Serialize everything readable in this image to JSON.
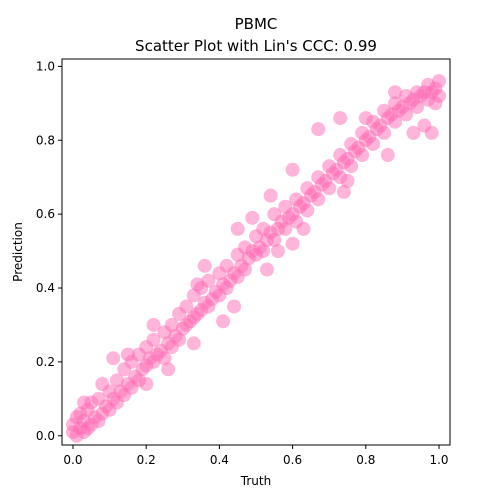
{
  "chart_data": {
    "type": "scatter",
    "title": "PBMC",
    "subtitle": "Scatter Plot with Lin's CCC: 0.99",
    "xlabel": "Truth",
    "ylabel": "Prediction",
    "xlim": [
      -0.03,
      1.03
    ],
    "ylim": [
      -0.025,
      1.02
    ],
    "xticks": [
      0.0,
      0.2,
      0.4,
      0.6,
      0.8,
      1.0
    ],
    "yticks": [
      0.0,
      0.2,
      0.4,
      0.6,
      0.8,
      1.0
    ],
    "xtick_labels": [
      "0.0",
      "0.2",
      "0.4",
      "0.6",
      "0.8",
      "1.0"
    ],
    "ytick_labels": [
      "0.0",
      "0.2",
      "0.4",
      "0.6",
      "0.8",
      "1.0"
    ],
    "grid": false,
    "point_color": "#ff69b4",
    "point_alpha": 0.5,
    "points": [
      [
        0.0,
        0.01
      ],
      [
        0.0,
        0.03
      ],
      [
        0.01,
        0.0
      ],
      [
        0.01,
        0.05
      ],
      [
        0.02,
        0.02
      ],
      [
        0.02,
        0.06
      ],
      [
        0.03,
        0.01
      ],
      [
        0.03,
        0.04
      ],
      [
        0.04,
        0.02
      ],
      [
        0.04,
        0.07
      ],
      [
        0.05,
        0.03
      ],
      [
        0.05,
        0.09
      ],
      [
        0.06,
        0.05
      ],
      [
        0.07,
        0.04
      ],
      [
        0.07,
        0.1
      ],
      [
        0.08,
        0.06
      ],
      [
        0.09,
        0.08
      ],
      [
        0.1,
        0.07
      ],
      [
        0.1,
        0.12
      ],
      [
        0.11,
        0.1
      ],
      [
        0.12,
        0.09
      ],
      [
        0.12,
        0.15
      ],
      [
        0.13,
        0.12
      ],
      [
        0.14,
        0.11
      ],
      [
        0.14,
        0.18
      ],
      [
        0.15,
        0.14
      ],
      [
        0.16,
        0.13
      ],
      [
        0.16,
        0.2
      ],
      [
        0.17,
        0.16
      ],
      [
        0.18,
        0.15
      ],
      [
        0.18,
        0.22
      ],
      [
        0.19,
        0.18
      ],
      [
        0.2,
        0.19
      ],
      [
        0.2,
        0.24
      ],
      [
        0.21,
        0.21
      ],
      [
        0.22,
        0.2
      ],
      [
        0.22,
        0.26
      ],
      [
        0.23,
        0.22
      ],
      [
        0.24,
        0.23
      ],
      [
        0.25,
        0.21
      ],
      [
        0.25,
        0.28
      ],
      [
        0.26,
        0.25
      ],
      [
        0.27,
        0.24
      ],
      [
        0.27,
        0.3
      ],
      [
        0.28,
        0.27
      ],
      [
        0.29,
        0.26
      ],
      [
        0.29,
        0.33
      ],
      [
        0.3,
        0.29
      ],
      [
        0.31,
        0.3
      ],
      [
        0.31,
        0.35
      ],
      [
        0.32,
        0.31
      ],
      [
        0.33,
        0.32
      ],
      [
        0.33,
        0.38
      ],
      [
        0.34,
        0.33
      ],
      [
        0.35,
        0.34
      ],
      [
        0.35,
        0.4
      ],
      [
        0.36,
        0.36
      ],
      [
        0.37,
        0.35
      ],
      [
        0.37,
        0.42
      ],
      [
        0.38,
        0.37
      ],
      [
        0.39,
        0.39
      ],
      [
        0.4,
        0.38
      ],
      [
        0.4,
        0.44
      ],
      [
        0.41,
        0.41
      ],
      [
        0.42,
        0.4
      ],
      [
        0.42,
        0.46
      ],
      [
        0.43,
        0.42
      ],
      [
        0.44,
        0.44
      ],
      [
        0.45,
        0.43
      ],
      [
        0.45,
        0.49
      ],
      [
        0.46,
        0.46
      ],
      [
        0.47,
        0.45
      ],
      [
        0.47,
        0.51
      ],
      [
        0.48,
        0.48
      ],
      [
        0.49,
        0.5
      ],
      [
        0.5,
        0.49
      ],
      [
        0.5,
        0.54
      ],
      [
        0.51,
        0.51
      ],
      [
        0.52,
        0.5
      ],
      [
        0.52,
        0.56
      ],
      [
        0.53,
        0.53
      ],
      [
        0.54,
        0.55
      ],
      [
        0.55,
        0.53
      ],
      [
        0.55,
        0.6
      ],
      [
        0.56,
        0.56
      ],
      [
        0.57,
        0.58
      ],
      [
        0.58,
        0.56
      ],
      [
        0.58,
        0.62
      ],
      [
        0.59,
        0.59
      ],
      [
        0.6,
        0.6
      ],
      [
        0.61,
        0.58
      ],
      [
        0.61,
        0.64
      ],
      [
        0.62,
        0.62
      ],
      [
        0.63,
        0.63
      ],
      [
        0.64,
        0.61
      ],
      [
        0.64,
        0.67
      ],
      [
        0.65,
        0.65
      ],
      [
        0.66,
        0.66
      ],
      [
        0.67,
        0.64
      ],
      [
        0.67,
        0.7
      ],
      [
        0.68,
        0.68
      ],
      [
        0.69,
        0.69
      ],
      [
        0.7,
        0.67
      ],
      [
        0.7,
        0.73
      ],
      [
        0.71,
        0.71
      ],
      [
        0.72,
        0.72
      ],
      [
        0.73,
        0.7
      ],
      [
        0.73,
        0.76
      ],
      [
        0.74,
        0.74
      ],
      [
        0.75,
        0.75
      ],
      [
        0.76,
        0.73
      ],
      [
        0.76,
        0.79
      ],
      [
        0.77,
        0.77
      ],
      [
        0.78,
        0.78
      ],
      [
        0.79,
        0.76
      ],
      [
        0.79,
        0.82
      ],
      [
        0.8,
        0.8
      ],
      [
        0.81,
        0.81
      ],
      [
        0.82,
        0.79
      ],
      [
        0.82,
        0.85
      ],
      [
        0.83,
        0.83
      ],
      [
        0.84,
        0.84
      ],
      [
        0.85,
        0.82
      ],
      [
        0.85,
        0.88
      ],
      [
        0.86,
        0.86
      ],
      [
        0.87,
        0.87
      ],
      [
        0.88,
        0.85
      ],
      [
        0.88,
        0.9
      ],
      [
        0.89,
        0.88
      ],
      [
        0.9,
        0.89
      ],
      [
        0.91,
        0.87
      ],
      [
        0.91,
        0.92
      ],
      [
        0.92,
        0.9
      ],
      [
        0.93,
        0.91
      ],
      [
        0.94,
        0.89
      ],
      [
        0.94,
        0.93
      ],
      [
        0.95,
        0.92
      ],
      [
        0.96,
        0.93
      ],
      [
        0.97,
        0.91
      ],
      [
        0.97,
        0.95
      ],
      [
        0.98,
        0.93
      ],
      [
        0.99,
        0.94
      ],
      [
        1.0,
        0.92
      ],
      [
        1.0,
        0.96
      ],
      [
        0.99,
        0.9
      ],
      [
        0.03,
        0.09
      ],
      [
        0.11,
        0.21
      ],
      [
        0.22,
        0.3
      ],
      [
        0.26,
        0.18
      ],
      [
        0.33,
        0.25
      ],
      [
        0.36,
        0.46
      ],
      [
        0.44,
        0.35
      ],
      [
        0.45,
        0.56
      ],
      [
        0.49,
        0.59
      ],
      [
        0.53,
        0.45
      ],
      [
        0.54,
        0.65
      ],
      [
        0.56,
        0.5
      ],
      [
        0.6,
        0.52
      ],
      [
        0.6,
        0.72
      ],
      [
        0.63,
        0.56
      ],
      [
        0.67,
        0.83
      ],
      [
        0.73,
        0.86
      ],
      [
        0.74,
        0.66
      ],
      [
        0.75,
        0.69
      ],
      [
        0.8,
        0.86
      ],
      [
        0.86,
        0.76
      ],
      [
        0.88,
        0.93
      ],
      [
        0.93,
        0.82
      ],
      [
        0.96,
        0.84
      ],
      [
        0.98,
        0.82
      ],
      [
        0.41,
        0.31
      ],
      [
        0.34,
        0.41
      ],
      [
        0.2,
        0.14
      ],
      [
        0.15,
        0.22
      ],
      [
        0.08,
        0.14
      ]
    ]
  }
}
